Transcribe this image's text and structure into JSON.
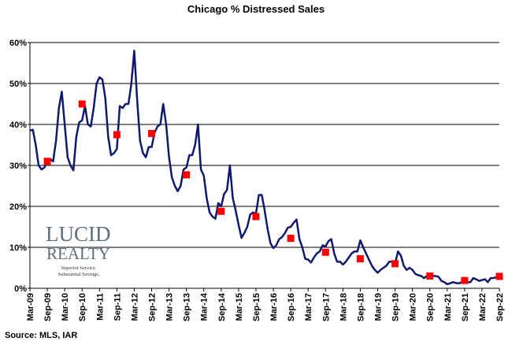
{
  "chart_data": {
    "type": "line",
    "title": "Chicago % Distressed Sales",
    "source": "Source: MLS, IAR",
    "logo": {
      "name": "LUCID",
      "sub": "REALTY",
      "tagline": [
        "Superior Service.",
        "Substantial Savings."
      ]
    },
    "categories": [
      "Mar-09",
      null,
      null,
      null,
      null,
      null,
      "Sep-09",
      null,
      null,
      null,
      null,
      null,
      "Mar-10",
      null,
      null,
      null,
      null,
      null,
      "Sep-10",
      null,
      null,
      null,
      null,
      null,
      "Mar-11",
      null,
      null,
      null,
      null,
      null,
      "Sep-11",
      null,
      null,
      null,
      null,
      null,
      "Mar-12",
      null,
      null,
      null,
      null,
      null,
      "Sep-12",
      null,
      null,
      null,
      null,
      null,
      "Mar-13",
      null,
      null,
      null,
      null,
      null,
      "Sep-13",
      null,
      null,
      null,
      null,
      null,
      "Mar-14",
      null,
      null,
      null,
      null,
      null,
      "Sep-14",
      null,
      null,
      null,
      null,
      null,
      "Mar-15",
      null,
      null,
      null,
      null,
      null,
      "Sep-15",
      null,
      null,
      null,
      null,
      null,
      "Mar-16",
      null,
      null,
      null,
      null,
      null,
      "Sep-16",
      null,
      null,
      null,
      null,
      null,
      "Mar-17",
      null,
      null,
      null,
      null,
      null,
      "Sep-17",
      null,
      null,
      null,
      null,
      null,
      "Mar-18",
      null,
      null,
      null,
      null,
      null,
      "Sep-18",
      null,
      null,
      null,
      null,
      null,
      "Mar-19",
      null,
      null,
      null,
      null,
      null,
      "Sep-19",
      null,
      null,
      null,
      null,
      null,
      "Mar-20",
      null,
      null,
      null,
      null,
      null,
      "Sep-20",
      null,
      null,
      null,
      null,
      null,
      "Mar-21",
      null,
      null,
      null,
      null,
      null,
      "Sep-21",
      null,
      null,
      null,
      null,
      null,
      "Mar-22",
      null,
      null,
      null,
      null,
      null,
      "Sep-22"
    ],
    "series": [
      {
        "color": "#0f1a6b",
        "marker": "none",
        "line": true,
        "values": [
          38.5,
          38.7,
          35,
          30,
          29,
          29.5,
          31,
          31.5,
          31,
          36,
          44,
          48,
          40,
          32,
          30,
          28.8,
          37,
          40.5,
          41,
          44.5,
          40,
          39.5,
          44,
          50,
          51.5,
          51,
          46.5,
          37,
          32.5,
          33,
          34,
          44.5,
          44,
          45,
          45,
          50,
          58,
          46,
          36,
          33,
          32,
          34.5,
          34.5,
          38,
          39.5,
          40,
          45,
          40,
          32,
          27,
          25,
          23.7,
          25,
          29,
          29.5,
          32.5,
          32.5,
          35,
          40,
          29,
          27.5,
          22,
          18.5,
          17.5,
          17,
          20.8,
          20,
          23,
          24,
          30,
          22,
          19,
          15.5,
          12.3,
          13.5,
          15,
          18,
          18.5,
          18.2,
          22.8,
          22.8,
          19,
          14.5,
          11,
          9.8,
          10.5,
          12,
          12.5,
          13.5,
          14.8,
          15,
          16,
          16.8,
          12,
          10,
          7.2,
          7,
          6.3,
          7.5,
          8.5,
          9,
          10.5,
          10.2,
          11.5,
          12,
          8.5,
          6.5,
          6.5,
          5.8,
          6.5,
          7.5,
          8.5,
          9,
          9,
          11.7,
          10,
          8.5,
          7,
          5.5,
          4.5,
          3.8,
          4.5,
          5,
          5.5,
          6.5,
          6.5,
          6,
          9,
          8,
          5.5,
          4.5,
          5,
          4.5,
          3.5,
          3.2,
          3,
          2.5,
          3,
          2.8,
          3,
          3,
          2.8,
          1.8,
          1.5,
          1,
          1.2,
          1.5,
          1.3,
          1.2,
          1.5,
          1.8,
          1.5,
          1.5,
          2.5,
          2.2,
          1.8,
          2,
          2.2,
          1.5,
          2.5,
          2.5,
          2.7,
          2.8
        ]
      },
      {
        "color": "#ff0000",
        "marker": "square",
        "line": false,
        "values": [
          null,
          null,
          null,
          null,
          null,
          null,
          31,
          null,
          null,
          null,
          null,
          null,
          null,
          null,
          null,
          null,
          null,
          null,
          45,
          null,
          null,
          null,
          null,
          null,
          null,
          null,
          null,
          null,
          null,
          null,
          37.5,
          null,
          null,
          null,
          null,
          null,
          null,
          null,
          null,
          null,
          null,
          null,
          37.8,
          null,
          null,
          null,
          null,
          null,
          null,
          null,
          null,
          null,
          null,
          null,
          27.7,
          null,
          null,
          null,
          null,
          null,
          null,
          null,
          null,
          null,
          null,
          null,
          18.8,
          null,
          null,
          null,
          null,
          null,
          null,
          null,
          null,
          null,
          null,
          null,
          17.5,
          null,
          null,
          null,
          null,
          null,
          null,
          null,
          null,
          null,
          null,
          null,
          12.2,
          null,
          null,
          null,
          null,
          null,
          null,
          null,
          null,
          null,
          null,
          null,
          8.8,
          null,
          null,
          null,
          null,
          null,
          null,
          null,
          null,
          null,
          null,
          null,
          7.2,
          null,
          null,
          null,
          null,
          null,
          null,
          null,
          null,
          null,
          null,
          null,
          6,
          null,
          null,
          null,
          null,
          null,
          null,
          null,
          null,
          null,
          null,
          null,
          3,
          null,
          null,
          null,
          null,
          null,
          null,
          null,
          null,
          null,
          null,
          null,
          1.9,
          null,
          null,
          null,
          null,
          null,
          null,
          null,
          null,
          null,
          null,
          null,
          2.9
        ]
      }
    ],
    "ylim": [
      0,
      60
    ],
    "yticks": [
      {
        "value": 0,
        "label": "0%"
      },
      {
        "value": 10,
        "label": "10%"
      },
      {
        "value": 20,
        "label": "20%"
      },
      {
        "value": 30,
        "label": "30%"
      },
      {
        "value": 40,
        "label": "40%"
      },
      {
        "value": 50,
        "label": "50%"
      },
      {
        "value": 60,
        "label": "60%"
      }
    ],
    "grid": true
  }
}
